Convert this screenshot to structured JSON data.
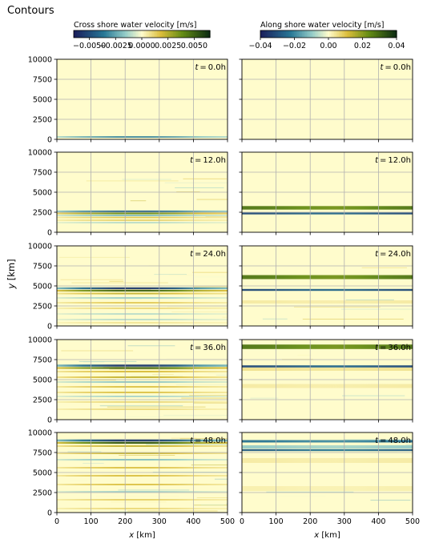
{
  "page": {
    "title": "Contours"
  },
  "chart_data": {
    "type": "heatmap",
    "title": "Contours",
    "grid": true,
    "shared_axes": {
      "xlabel": "$x$ [km]",
      "xlabel_text": "x [km]",
      "ylabel_var": "y",
      "ylabel_unit": " [km]",
      "xlim": [
        0,
        500
      ],
      "ylim": [
        0,
        10000
      ],
      "xticks": [
        0,
        100,
        200,
        300,
        400,
        500
      ],
      "yticks": [
        0,
        2500,
        5000,
        7500,
        10000
      ]
    },
    "colormap": {
      "low": "#1a1f5c",
      "mid": "#fffccc",
      "high": "#0d2d12"
    },
    "colorbars": [
      {
        "label": "Cross shore water velocity [m/s]",
        "vmin": -0.0065,
        "vmax": 0.0065,
        "ticks": [
          -0.005,
          -0.0025,
          0.0,
          0.0025,
          0.005
        ],
        "tick_labels": [
          "−0.0050",
          "−0.0025",
          "0.0000",
          "0.0025",
          "0.0050"
        ]
      },
      {
        "label": "Along shore water velocity [m/s]",
        "vmin": -0.04,
        "vmax": 0.04,
        "ticks": [
          -0.04,
          -0.02,
          0.0,
          0.02,
          0.04
        ],
        "tick_labels": [
          "−0.04",
          "−0.02",
          "0.00",
          "0.02",
          "0.04"
        ]
      }
    ],
    "columns": [
      "Cross shore water velocity [m/s]",
      "Along shore water velocity [m/s]"
    ],
    "times": [
      {
        "label": "t = 0.0h",
        "hours": 0
      },
      {
        "label": "t = 12.0h",
        "hours": 12
      },
      {
        "label": "t = 24.0h",
        "hours": 24
      },
      {
        "label": "t = 36.0h",
        "hours": 36
      },
      {
        "label": "t = 48.0h",
        "hours": 48
      }
    ],
    "panels": [
      {
        "row": 0,
        "col": 0,
        "bands": [
          {
            "y": 300,
            "w": 90,
            "a": -0.55,
            "x0": 0,
            "x1": 500,
            "peak": 300
          }
        ],
        "speckle": 0.0
      },
      {
        "row": 0,
        "col": 1,
        "bands": [],
        "speckle": 0.0
      },
      {
        "row": 1,
        "col": 0,
        "bands": [
          {
            "y": 2600,
            "w": 110,
            "a": -0.7
          },
          {
            "y": 2350,
            "w": 100,
            "a": 0.6
          },
          {
            "y": 2100,
            "w": 100,
            "a": -0.3
          },
          {
            "y": 1850,
            "w": 90,
            "a": 0.25
          },
          {
            "y": 1500,
            "w": 90,
            "a": 0.2
          },
          {
            "y": 1200,
            "w": 80,
            "a": -0.2
          }
        ],
        "speckle": 0.12
      },
      {
        "row": 1,
        "col": 1,
        "bands": [
          {
            "y": 3050,
            "w": 220,
            "a": 0.7
          },
          {
            "y": 2350,
            "w": 120,
            "a": -0.8
          }
        ],
        "speckle": 0.0
      },
      {
        "row": 2,
        "col": 0,
        "bands": [
          {
            "y": 4700,
            "w": 120,
            "a": -0.9
          },
          {
            "y": 4400,
            "w": 100,
            "a": 0.8
          },
          {
            "y": 4050,
            "w": 100,
            "a": 0.35
          },
          {
            "y": 3500,
            "w": 90,
            "a": -0.25
          },
          {
            "y": 2900,
            "w": 90,
            "a": 0.25
          },
          {
            "y": 2200,
            "w": 80,
            "a": 0.2
          },
          {
            "y": 1500,
            "w": 80,
            "a": -0.2
          },
          {
            "y": 800,
            "w": 80,
            "a": -0.2
          },
          {
            "y": 400,
            "w": 70,
            "a": 0.15
          }
        ],
        "speckle": 0.15
      },
      {
        "row": 2,
        "col": 1,
        "bands": [
          {
            "y": 6100,
            "w": 250,
            "a": 0.7
          },
          {
            "y": 4500,
            "w": 120,
            "a": -0.8
          },
          {
            "y": 3000,
            "w": 200,
            "a": 0.08
          }
        ],
        "speckle": 0.06
      },
      {
        "row": 3,
        "col": 0,
        "bands": [
          {
            "y": 6750,
            "w": 130,
            "a": -0.9
          },
          {
            "y": 6450,
            "w": 110,
            "a": 0.8
          },
          {
            "y": 6000,
            "w": 100,
            "a": 0.3
          },
          {
            "y": 5300,
            "w": 100,
            "a": 0.35
          },
          {
            "y": 4700,
            "w": 90,
            "a": -0.3
          },
          {
            "y": 4100,
            "w": 90,
            "a": 0.3
          },
          {
            "y": 3400,
            "w": 90,
            "a": 0.3
          },
          {
            "y": 2900,
            "w": 80,
            "a": -0.25
          },
          {
            "y": 2200,
            "w": 80,
            "a": 0.2
          },
          {
            "y": 1300,
            "w": 80,
            "a": 0.2
          }
        ],
        "speckle": 0.18
      },
      {
        "row": 3,
        "col": 1,
        "bands": [
          {
            "y": 9100,
            "w": 280,
            "a": 0.7
          },
          {
            "y": 6650,
            "w": 130,
            "a": -0.8
          },
          {
            "y": 6300,
            "w": 200,
            "a": 0.12
          },
          {
            "y": 4200,
            "w": 250,
            "a": 0.08
          }
        ],
        "speckle": 0.06
      },
      {
        "row": 4,
        "col": 0,
        "bands": [
          {
            "y": 9000,
            "w": 130,
            "a": -0.9
          },
          {
            "y": 8700,
            "w": 110,
            "a": 0.85
          },
          {
            "y": 8300,
            "w": 100,
            "a": 0.35
          },
          {
            "y": 7400,
            "w": 100,
            "a": 0.35
          },
          {
            "y": 6600,
            "w": 100,
            "a": -0.3
          },
          {
            "y": 5600,
            "w": 90,
            "a": 0.3
          },
          {
            "y": 4600,
            "w": 90,
            "a": 0.3
          },
          {
            "y": 3500,
            "w": 90,
            "a": 0.3
          },
          {
            "y": 2600,
            "w": 80,
            "a": -0.25
          },
          {
            "y": 1600,
            "w": 80,
            "a": 0.25
          },
          {
            "y": 500,
            "w": 80,
            "a": 0.2
          }
        ],
        "speckle": 0.2
      },
      {
        "row": 4,
        "col": 1,
        "bands": [
          {
            "y": 8900,
            "w": 150,
            "a": -0.6
          },
          {
            "y": 8200,
            "w": 200,
            "a": -0.25
          },
          {
            "y": 7800,
            "w": 120,
            "a": -0.7
          },
          {
            "y": 6500,
            "w": 300,
            "a": 0.08
          },
          {
            "y": 3000,
            "w": 300,
            "a": 0.06
          }
        ],
        "speckle": 0.07
      }
    ]
  }
}
